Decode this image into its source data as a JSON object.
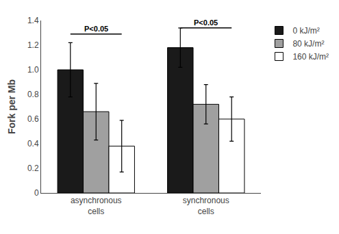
{
  "chart_data": {
    "type": "bar",
    "categories": [
      "asynchronous\ncells",
      "synchronous\ncells"
    ],
    "series": [
      {
        "name": "0 kJ/m²",
        "color": "#1a1a1a",
        "values": [
          1.0,
          1.18
        ],
        "errors": [
          0.22,
          0.16
        ]
      },
      {
        "name": "80 kJ/m²",
        "color": "#a0a0a0",
        "values": [
          0.66,
          0.72
        ],
        "errors": [
          0.23,
          0.16
        ]
      },
      {
        "name": "160 kJ/m²",
        "color": "#ffffff",
        "values": [
          0.38,
          0.6
        ],
        "errors": [
          0.21,
          0.18
        ]
      }
    ],
    "ylabel": "Fork per Mb",
    "ylim": [
      0,
      1.4
    ],
    "yticks": [
      {
        "value": 0,
        "label": "0"
      },
      0.2,
      0.4,
      0.6,
      0.8,
      {
        "value": 1.0,
        "label": "1.0"
      },
      1.2,
      1.4
    ],
    "annotations": [
      {
        "text": "P<0.05",
        "category": "asynchronous\ncells",
        "from": "0 kJ/m²",
        "to": "160 kJ/m²",
        "y": 1.29
      },
      {
        "text": "P<0.05",
        "category": "synchronous\ncells",
        "from": "0 kJ/m²",
        "to": "160 kJ/m²",
        "y": 1.34
      }
    ],
    "legend": "right",
    "grid": false
  }
}
